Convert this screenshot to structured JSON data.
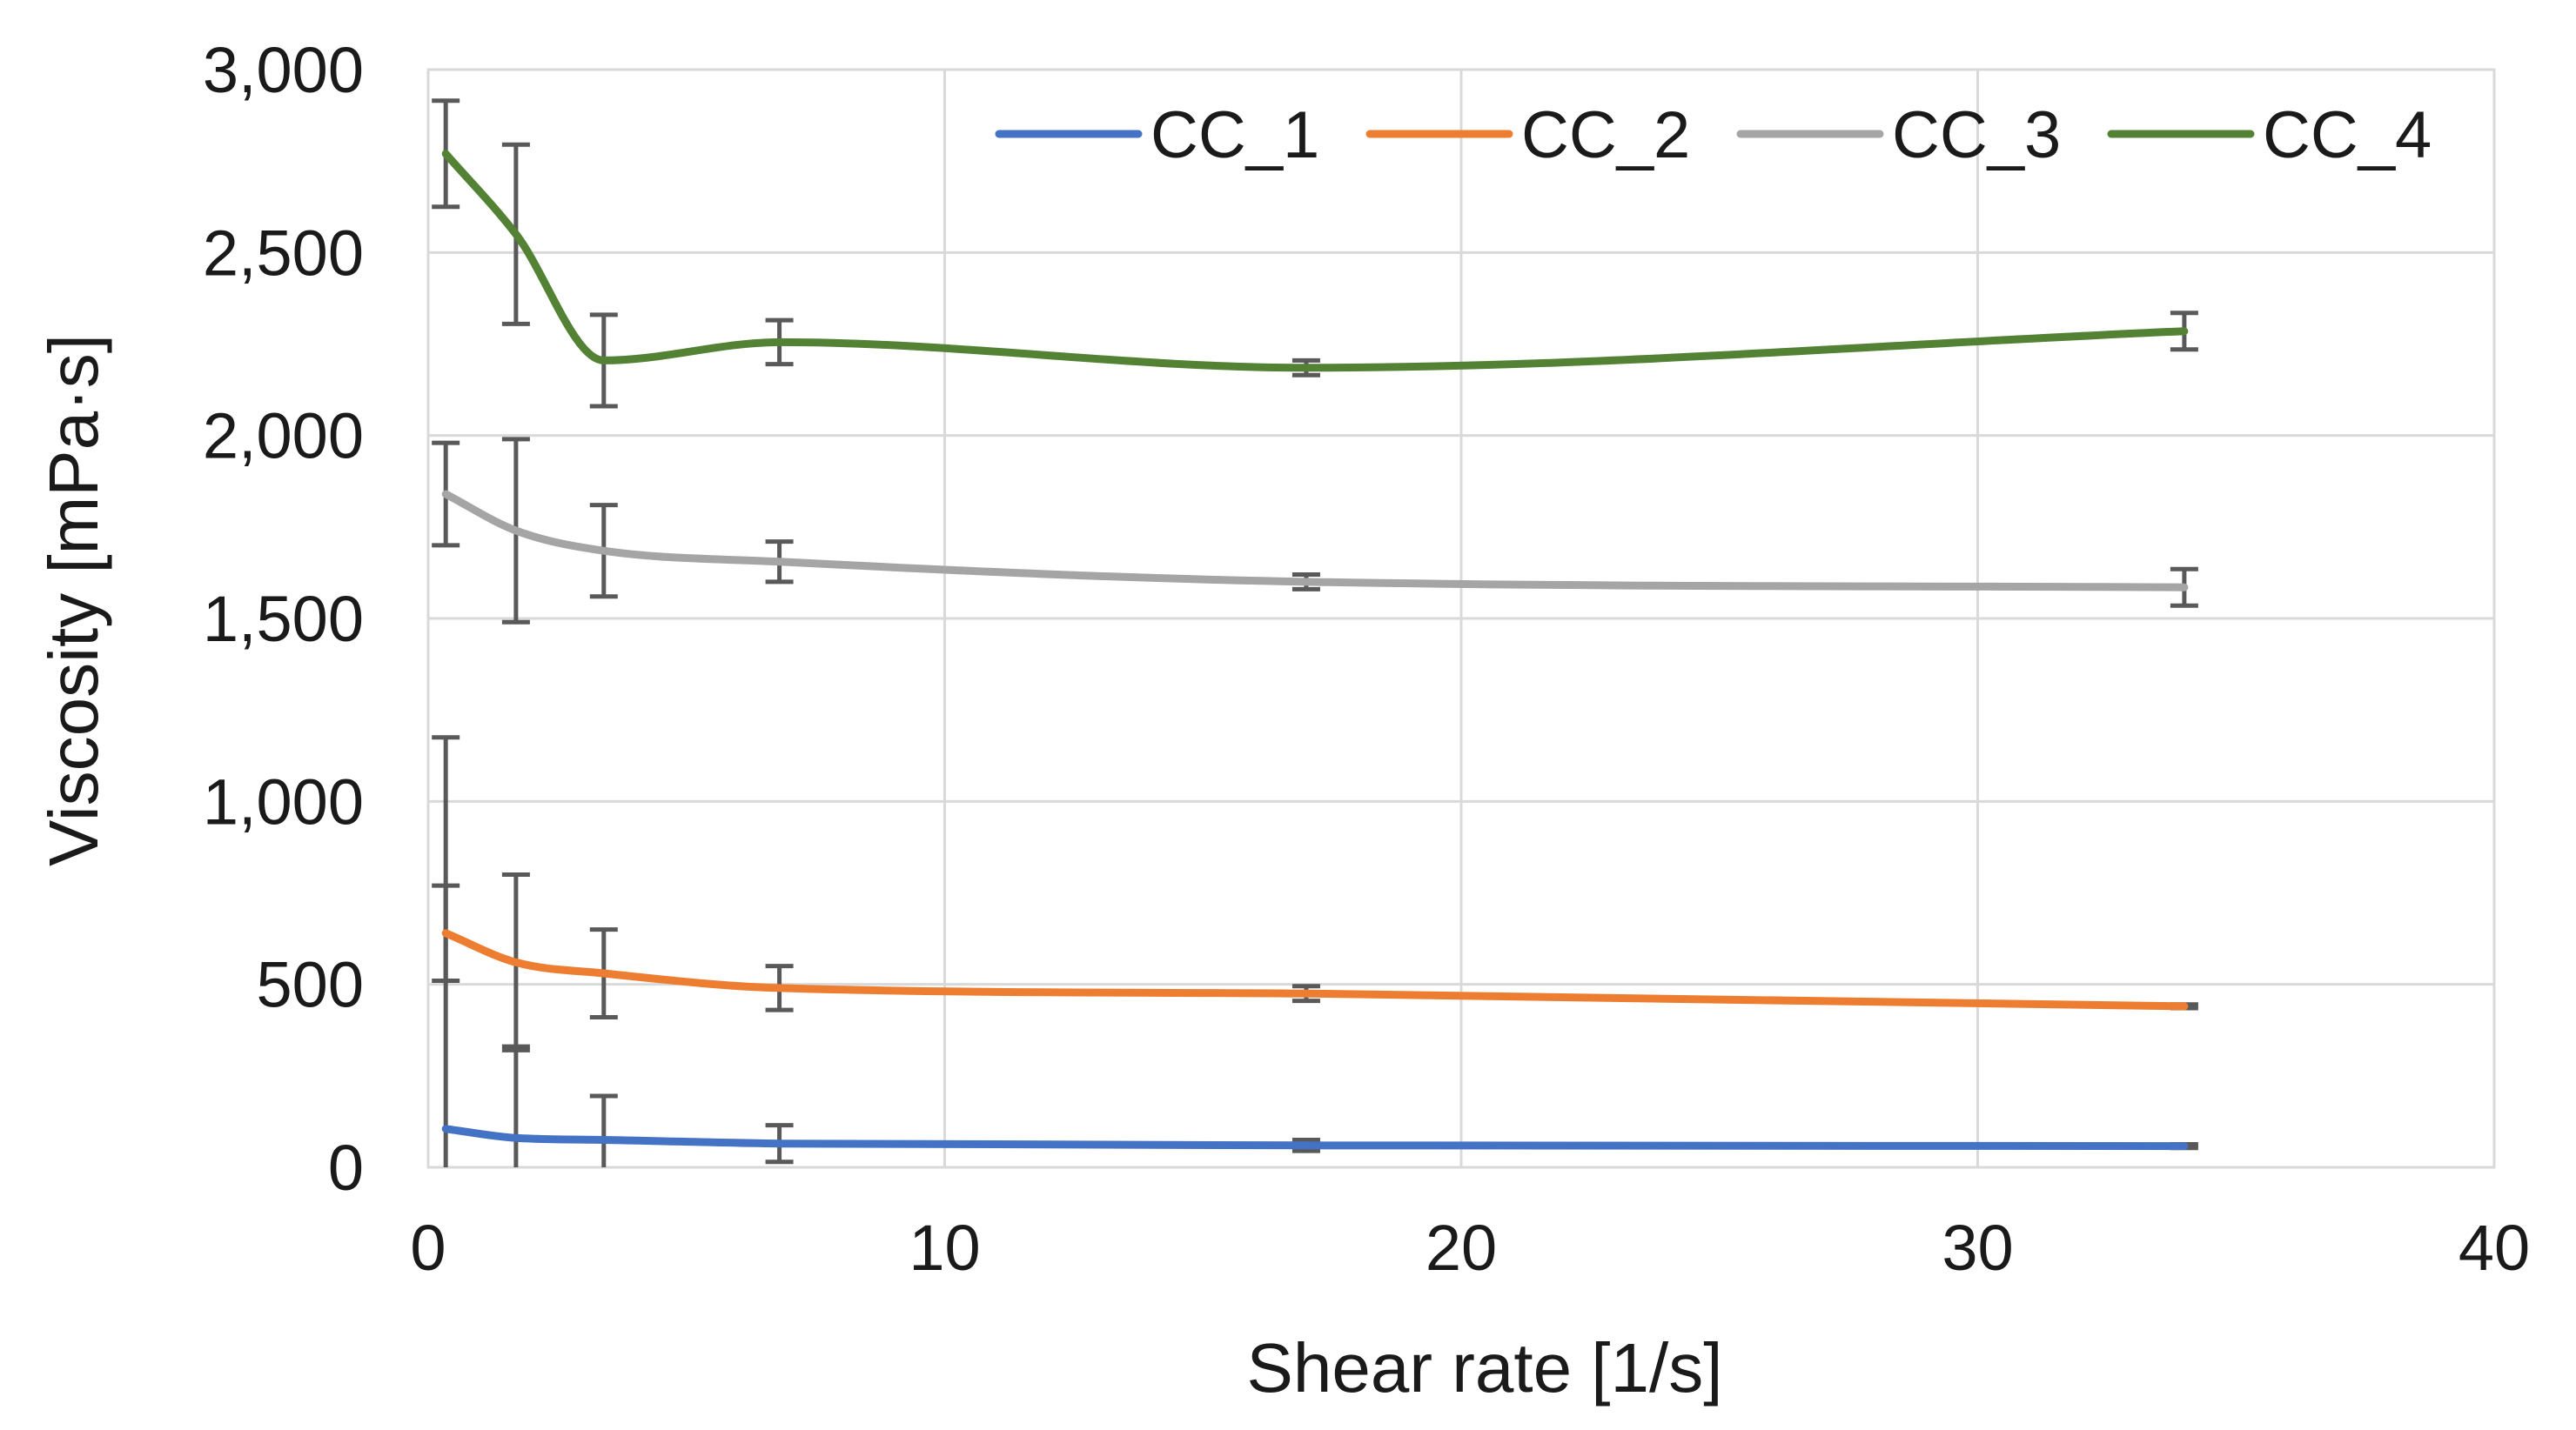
{
  "chart_data": {
    "type": "line",
    "title": "",
    "xlabel": "Shear rate [1/s]",
    "ylabel": "Viscosity [mPa·s]",
    "xlim": [
      0,
      40
    ],
    "ylim": [
      0,
      3000
    ],
    "x_ticks": [
      0,
      10,
      20,
      30,
      40
    ],
    "x_tick_labels": [
      "0",
      "10",
      "20",
      "30",
      "40"
    ],
    "y_ticks": [
      0,
      500,
      1000,
      1500,
      2000,
      2500,
      3000
    ],
    "y_tick_labels": [
      "0",
      "500",
      "1,000",
      "1,500",
      "2,000",
      "2,500",
      "3,000"
    ],
    "grid": true,
    "legend_position": "top-right",
    "x": [
      0.34,
      1.7,
      3.4,
      6.8,
      17,
      34
    ],
    "series": [
      {
        "name": "CC_1",
        "color": "#4472c4",
        "values": [
          105,
          80,
          75,
          65,
          60,
          58
        ],
        "errors": [
          1070,
          250,
          120,
          50,
          15,
          5
        ]
      },
      {
        "name": "CC_2",
        "color": "#ed7d31",
        "values": [
          640,
          560,
          530,
          490,
          475,
          440
        ],
        "errors": [
          130,
          240,
          120,
          60,
          20,
          5
        ]
      },
      {
        "name": "CC_3",
        "color": "#a5a5a5",
        "values": [
          1840,
          1740,
          1685,
          1655,
          1600,
          1585
        ],
        "errors": [
          140,
          250,
          125,
          55,
          20,
          50
        ]
      },
      {
        "name": "CC_4",
        "color": "#548235",
        "values": [
          2770,
          2550,
          2205,
          2255,
          2185,
          2285
        ],
        "errors": [
          145,
          245,
          125,
          60,
          20,
          50
        ]
      }
    ]
  }
}
